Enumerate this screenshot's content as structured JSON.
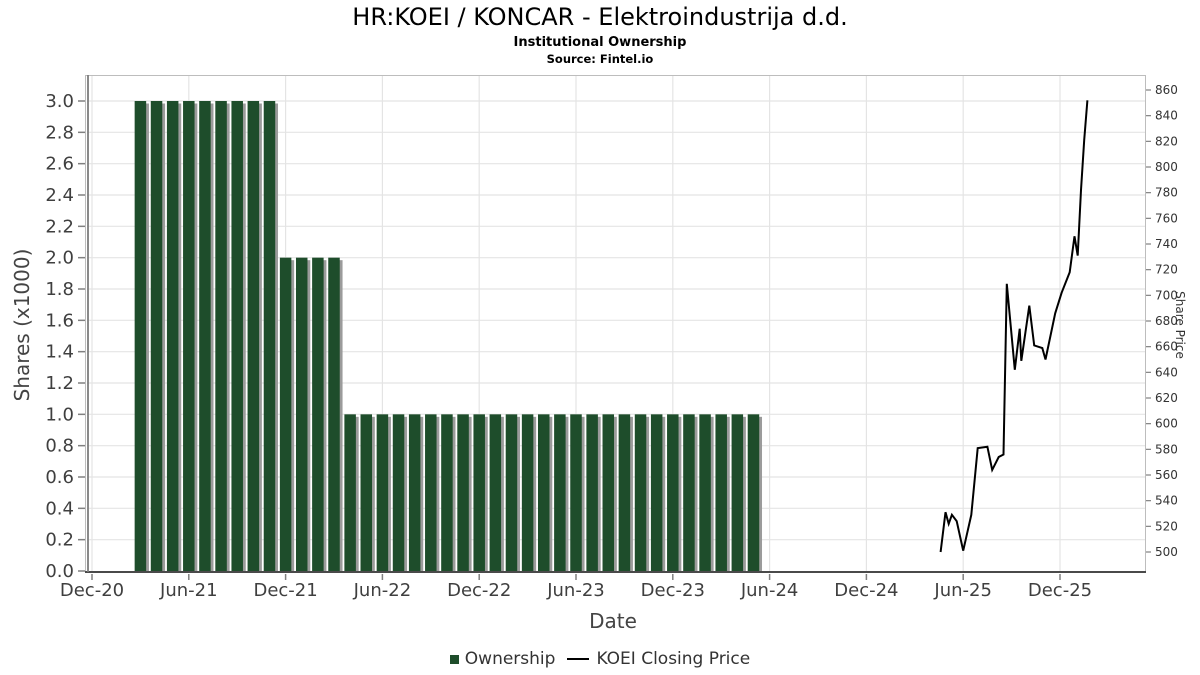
{
  "header": {
    "title": "HR:KOEI / KONCAR - Elektroindustrija d.d.",
    "subtitle": "Institutional Ownership",
    "source": "Source: Fintel.io"
  },
  "legend": {
    "ownership_label": "Ownership",
    "price_label": "KOEI Closing Price"
  },
  "colors": {
    "bar_fill": "#1e4d2b",
    "bar_shadow": "#9b9b9b",
    "line": "#000000",
    "grid": "#e4e4e4",
    "axis_dark": "#4a4a4a",
    "tick": "#808080",
    "tick_text": "#3f3f3f"
  },
  "chart_data": {
    "type": "bar+line",
    "title": "HR:KOEI / KONCAR - Elektroindustrija d.d.",
    "subtitle": "Institutional Ownership",
    "source": "Source: Fintel.io",
    "grid": true,
    "legend_position": "bottom-center",
    "x_axis": {
      "label": "Date",
      "ticks": [
        {
          "m": 0,
          "label": "Dec-20"
        },
        {
          "m": 6,
          "label": "Jun-21"
        },
        {
          "m": 12,
          "label": "Dec-21"
        },
        {
          "m": 18,
          "label": "Jun-22"
        },
        {
          "m": 24,
          "label": "Dec-22"
        },
        {
          "m": 30,
          "label": "Jun-23"
        },
        {
          "m": 36,
          "label": "Dec-23"
        },
        {
          "m": 42,
          "label": "Jun-24"
        },
        {
          "m": 48,
          "label": "Dec-24"
        },
        {
          "m": 54,
          "label": "Jun-25"
        },
        {
          "m": 60,
          "label": "Dec-25"
        }
      ]
    },
    "y_left": {
      "label": "Shares (x1000)",
      "min": 0.0,
      "max": 3.0,
      "tick_step": 0.2,
      "tick_labels": [
        "0.0",
        "0.2",
        "0.4",
        "0.6",
        "0.8",
        "1.0",
        "1.2",
        "1.4",
        "1.6",
        "1.8",
        "2.0",
        "2.2",
        "2.4",
        "2.6",
        "2.8",
        "3.0"
      ]
    },
    "y_right": {
      "label": "Share Price",
      "min": 500,
      "max": 860,
      "tick_step": 20,
      "tick_labels": [
        "500",
        "520",
        "540",
        "560",
        "580",
        "600",
        "620",
        "640",
        "660",
        "680",
        "700",
        "720",
        "740",
        "760",
        "780",
        "800",
        "820",
        "840",
        "860"
      ]
    },
    "series": [
      {
        "name": "Ownership",
        "type": "bar",
        "axis": "left",
        "color": "#1e4d2b",
        "months": [
          "Mar-21",
          "Apr-21",
          "May-21",
          "Jun-21",
          "Jul-21",
          "Aug-21",
          "Sep-21",
          "Oct-21",
          "Nov-21",
          "Dec-21",
          "Jan-22",
          "Feb-22",
          "Mar-22",
          "Apr-22",
          "May-22",
          "Jun-22",
          "Jul-22",
          "Aug-22",
          "Sep-22",
          "Oct-22",
          "Nov-22",
          "Dec-22",
          "Jan-23",
          "Feb-23",
          "Mar-23",
          "Apr-23",
          "May-23",
          "Jun-23",
          "Jul-23",
          "Aug-23",
          "Sep-23",
          "Oct-23",
          "Nov-23",
          "Dec-23",
          "Jan-24",
          "Feb-24",
          "Mar-24",
          "Apr-24",
          "May-24"
        ],
        "m": [
          3,
          4,
          5,
          6,
          7,
          8,
          9,
          10,
          11,
          12,
          13,
          14,
          15,
          16,
          17,
          18,
          19,
          20,
          21,
          22,
          23,
          24,
          25,
          26,
          27,
          28,
          29,
          30,
          31,
          32,
          33,
          34,
          35,
          36,
          37,
          38,
          39,
          40,
          41
        ],
        "values": [
          3,
          3,
          3,
          3,
          3,
          3,
          3,
          3,
          3,
          2,
          2,
          2,
          2,
          1,
          1,
          1,
          1,
          1,
          1,
          1,
          1,
          1,
          1,
          1,
          1,
          1,
          1,
          1,
          1,
          1,
          1,
          1,
          1,
          1,
          1,
          1,
          1,
          1,
          1
        ]
      },
      {
        "name": "KOEI Closing Price",
        "type": "line",
        "axis": "right",
        "color": "#000000",
        "m": [
          52.6,
          52.9,
          53.1,
          53.3,
          53.6,
          54.0,
          54.5,
          54.9,
          55.5,
          55.8,
          56.2,
          56.5,
          56.7,
          57.2,
          57.5,
          57.6,
          58.1,
          58.4,
          58.9,
          59.1,
          59.7,
          60.1,
          60.6,
          60.9,
          61.1,
          61.3,
          61.5,
          61.7
        ],
        "values": [
          500,
          531,
          522,
          529,
          524,
          501,
          529,
          581,
          582,
          564,
          574,
          576,
          709,
          642,
          674,
          649,
          692,
          661,
          659,
          650,
          686,
          702,
          718,
          746,
          731,
          782,
          821,
          852
        ]
      }
    ]
  }
}
